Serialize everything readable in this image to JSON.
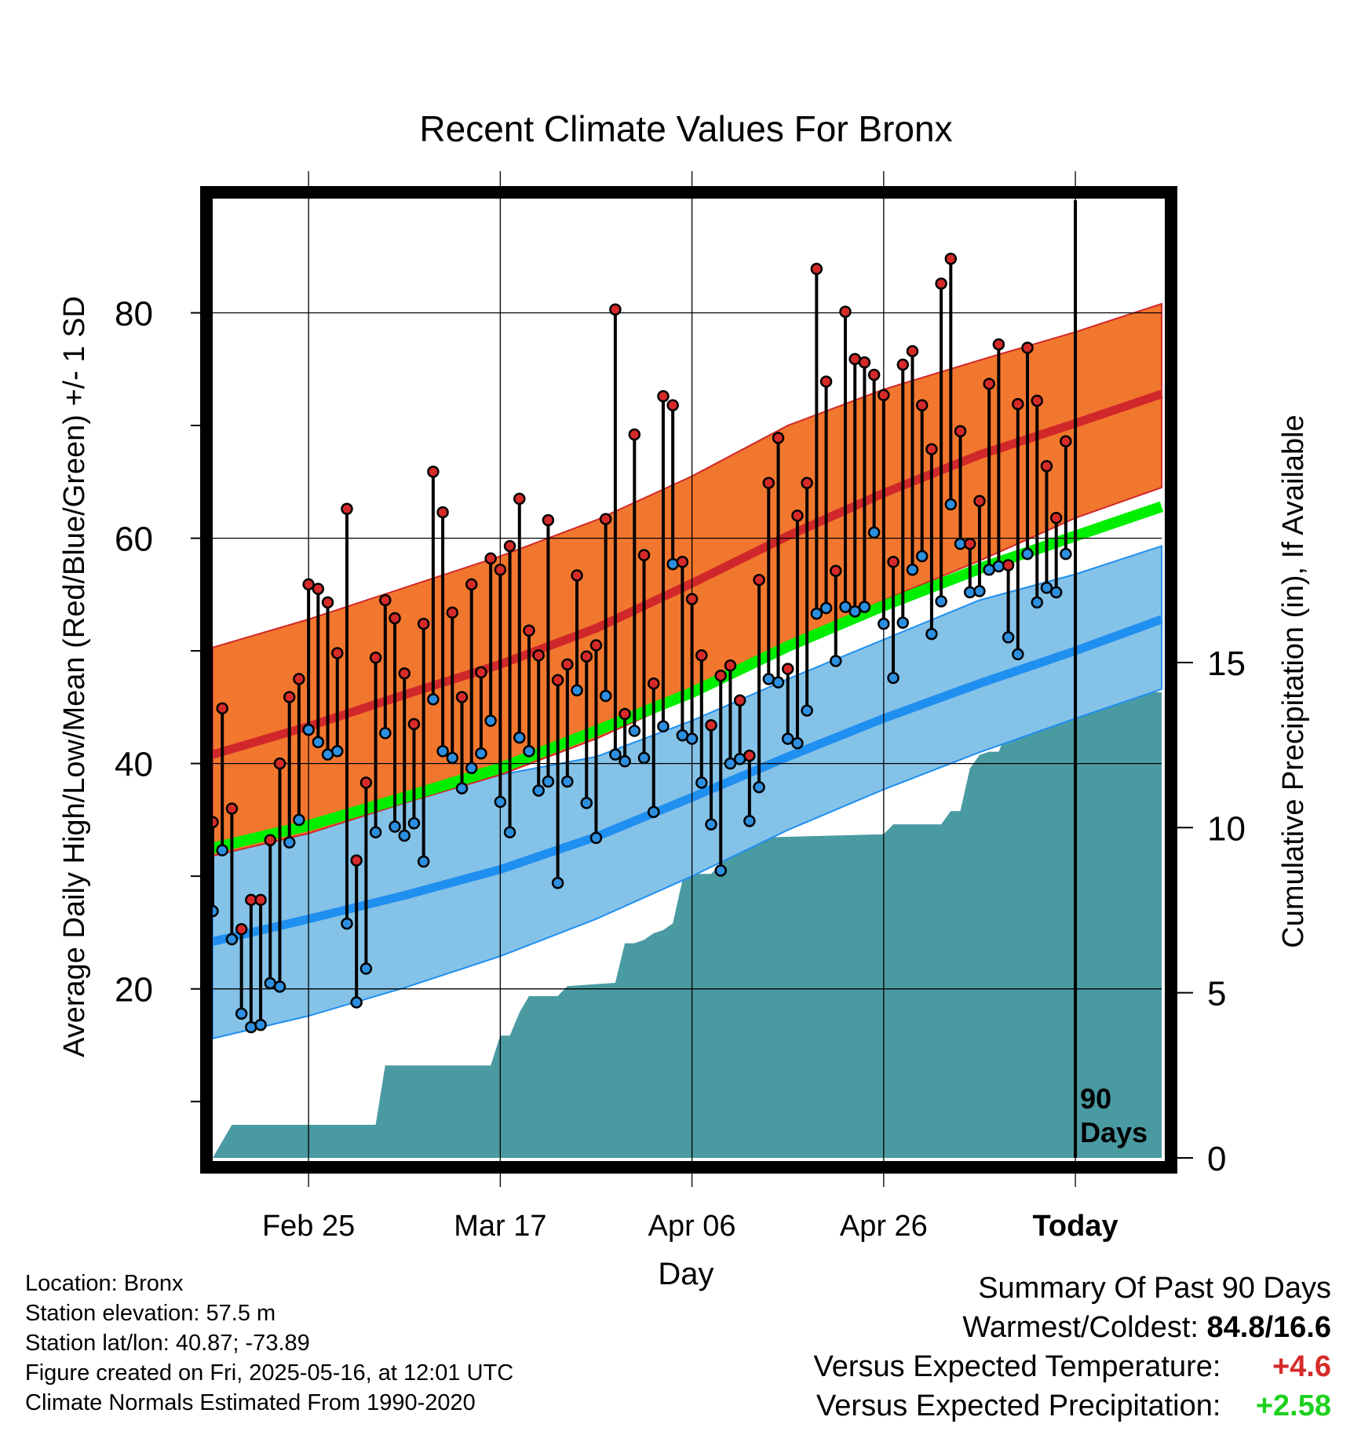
{
  "chart_data": {
    "type": "line",
    "title": "Recent Climate Values For Bronx",
    "xlabel": "Day",
    "ylabel_left": "Average Daily High/Low/Mean (Red/Blue/Green) +/- 1 SD",
    "ylabel_right": "Cumulative Precipitation (in), If Available",
    "x_start": "2025-02-15",
    "x_end": "2025-05-25",
    "today": "2025-05-16",
    "today_marker_label": [
      "90",
      "Days"
    ],
    "xticks": [
      {
        "date": "2025-02-25",
        "label": "Feb 25"
      },
      {
        "date": "2025-03-17",
        "label": "Mar 17"
      },
      {
        "date": "2025-04-06",
        "label": "Apr 06"
      },
      {
        "date": "2025-04-26",
        "label": "Apr 26"
      },
      {
        "date": "2025-05-16",
        "label": "Today"
      }
    ],
    "yleft_lim": [
      5,
      90
    ],
    "yleft_ticks": [
      20,
      40,
      60,
      80
    ],
    "yleft_minor_ticks": [
      10,
      30,
      50,
      70
    ],
    "yright_lim": [
      0,
      29
    ],
    "yright_ticks": [
      0,
      5,
      10,
      15
    ],
    "grid": true,
    "normals": {
      "dates": [
        "2025-02-15",
        "2025-02-25",
        "2025-03-07",
        "2025-03-17",
        "2025-03-27",
        "2025-04-06",
        "2025-04-16",
        "2025-04-26",
        "2025-05-06",
        "2025-05-16",
        "2025-05-25"
      ],
      "high_mean": [
        40.8,
        43.3,
        46.1,
        48.8,
        52.0,
        56.0,
        60.2,
        64.0,
        67.4,
        70.2,
        72.8
      ],
      "high_upper": [
        50.3,
        52.8,
        55.6,
        58.4,
        61.6,
        65.5,
        70.0,
        73.2,
        75.8,
        78.3,
        80.8
      ],
      "high_lower": [
        31.8,
        33.8,
        36.5,
        39.0,
        42.2,
        46.0,
        50.6,
        54.5,
        58.0,
        61.8,
        64.5
      ],
      "low_mean": [
        24.2,
        26.2,
        28.3,
        30.6,
        33.5,
        37.0,
        40.6,
        44.0,
        47.1,
        50.0,
        52.8
      ],
      "low_upper": [
        31.8,
        33.8,
        36.5,
        39.0,
        40.6,
        43.8,
        47.5,
        51.0,
        54.5,
        56.8,
        59.3
      ],
      "low_lower": [
        15.6,
        17.6,
        20.1,
        22.9,
        26.2,
        30.0,
        34.1,
        37.7,
        41.0,
        44.0,
        46.6
      ],
      "daily_mean": [
        32.5,
        34.5,
        37.0,
        39.6,
        42.9,
        46.3,
        50.4,
        54.0,
        57.3,
        60.2,
        62.8
      ]
    },
    "observed": [
      {
        "date": "2025-02-15",
        "high": 34.8,
        "low": 26.9
      },
      {
        "date": "2025-02-16",
        "high": 44.9,
        "low": 32.3
      },
      {
        "date": "2025-02-17",
        "high": 36.0,
        "low": 24.4
      },
      {
        "date": "2025-02-18",
        "high": 25.3,
        "low": 17.8
      },
      {
        "date": "2025-02-19",
        "high": 27.9,
        "low": 16.6
      },
      {
        "date": "2025-02-20",
        "high": 27.9,
        "low": 16.8
      },
      {
        "date": "2025-02-21",
        "high": 33.2,
        "low": 20.5
      },
      {
        "date": "2025-02-22",
        "high": 40.0,
        "low": 20.2
      },
      {
        "date": "2025-02-23",
        "high": 45.9,
        "low": 33.0
      },
      {
        "date": "2025-02-24",
        "high": 47.5,
        "low": 35.0
      },
      {
        "date": "2025-02-25",
        "high": 55.9,
        "low": 43.0
      },
      {
        "date": "2025-02-26",
        "high": 55.5,
        "low": 41.9
      },
      {
        "date": "2025-02-27",
        "high": 54.3,
        "low": 40.8
      },
      {
        "date": "2025-02-28",
        "high": 49.8,
        "low": 41.1
      },
      {
        "date": "2025-03-01",
        "high": 62.6,
        "low": 25.8
      },
      {
        "date": "2025-03-02",
        "high": 31.4,
        "low": 18.8
      },
      {
        "date": "2025-03-03",
        "high": 38.3,
        "low": 21.8
      },
      {
        "date": "2025-03-04",
        "high": 49.4,
        "low": 33.9
      },
      {
        "date": "2025-03-05",
        "high": 54.5,
        "low": 42.7
      },
      {
        "date": "2025-03-06",
        "high": 52.9,
        "low": 34.4
      },
      {
        "date": "2025-03-07",
        "high": 48.0,
        "low": 33.6
      },
      {
        "date": "2025-03-08",
        "high": 43.5,
        "low": 34.7
      },
      {
        "date": "2025-03-09",
        "high": 52.4,
        "low": 31.3
      },
      {
        "date": "2025-03-10",
        "high": 65.9,
        "low": 45.7
      },
      {
        "date": "2025-03-11",
        "high": 62.3,
        "low": 41.1
      },
      {
        "date": "2025-03-12",
        "high": 53.4,
        "low": 40.5
      },
      {
        "date": "2025-03-13",
        "high": 45.9,
        "low": 37.8
      },
      {
        "date": "2025-03-14",
        "high": 55.9,
        "low": 39.6
      },
      {
        "date": "2025-03-15",
        "high": 48.1,
        "low": 40.9
      },
      {
        "date": "2025-03-16",
        "high": 58.2,
        "low": 43.8
      },
      {
        "date": "2025-03-17",
        "high": 57.2,
        "low": 36.6
      },
      {
        "date": "2025-03-18",
        "high": 59.3,
        "low": 33.9
      },
      {
        "date": "2025-03-19",
        "high": 63.5,
        "low": 42.3
      },
      {
        "date": "2025-03-20",
        "high": 51.8,
        "low": 41.1
      },
      {
        "date": "2025-03-21",
        "high": 49.6,
        "low": 37.6
      },
      {
        "date": "2025-03-22",
        "high": 61.6,
        "low": 38.4
      },
      {
        "date": "2025-03-23",
        "high": 47.4,
        "low": 29.4
      },
      {
        "date": "2025-03-24",
        "high": 48.8,
        "low": 38.4
      },
      {
        "date": "2025-03-25",
        "high": 56.7,
        "low": 46.5
      },
      {
        "date": "2025-03-26",
        "high": 49.5,
        "low": 36.5
      },
      {
        "date": "2025-03-27",
        "high": 50.5,
        "low": 33.4
      },
      {
        "date": "2025-03-28",
        "high": 61.7,
        "low": 46.0
      },
      {
        "date": "2025-03-29",
        "high": 80.3,
        "low": 40.8
      },
      {
        "date": "2025-03-30",
        "high": 44.4,
        "low": 40.2
      },
      {
        "date": "2025-03-31",
        "high": 69.2,
        "low": 42.9
      },
      {
        "date": "2025-04-01",
        "high": 58.5,
        "low": 40.5
      },
      {
        "date": "2025-04-02",
        "high": 47.1,
        "low": 35.7
      },
      {
        "date": "2025-04-03",
        "high": 72.6,
        "low": 43.3
      },
      {
        "date": "2025-04-04",
        "high": 71.8,
        "low": 57.7
      },
      {
        "date": "2025-04-05",
        "high": 57.9,
        "low": 42.5
      },
      {
        "date": "2025-04-06",
        "high": 54.6,
        "low": 42.2
      },
      {
        "date": "2025-04-07",
        "high": 49.6,
        "low": 38.3
      },
      {
        "date": "2025-04-08",
        "high": 43.4,
        "low": 34.6
      },
      {
        "date": "2025-04-09",
        "high": 47.8,
        "low": 30.5
      },
      {
        "date": "2025-04-10",
        "high": 48.7,
        "low": 40.0
      },
      {
        "date": "2025-04-11",
        "high": 45.6,
        "low": 40.4
      },
      {
        "date": "2025-04-12",
        "high": 40.7,
        "low": 34.9
      },
      {
        "date": "2025-04-13",
        "high": 56.3,
        "low": 37.9
      },
      {
        "date": "2025-04-14",
        "high": 64.9,
        "low": 47.5
      },
      {
        "date": "2025-04-15",
        "high": 68.9,
        "low": 47.2
      },
      {
        "date": "2025-04-16",
        "high": 48.4,
        "low": 42.2
      },
      {
        "date": "2025-04-17",
        "high": 62.0,
        "low": 41.8
      },
      {
        "date": "2025-04-18",
        "high": 64.9,
        "low": 44.7
      },
      {
        "date": "2025-04-19",
        "high": 83.9,
        "low": 53.3
      },
      {
        "date": "2025-04-20",
        "high": 73.9,
        "low": 53.8
      },
      {
        "date": "2025-04-21",
        "high": 57.1,
        "low": 49.1
      },
      {
        "date": "2025-04-22",
        "high": 80.1,
        "low": 53.9
      },
      {
        "date": "2025-04-23",
        "high": 75.9,
        "low": 53.5
      },
      {
        "date": "2025-04-24",
        "high": 75.6,
        "low": 53.9
      },
      {
        "date": "2025-04-25",
        "high": 74.5,
        "low": 60.5
      },
      {
        "date": "2025-04-26",
        "high": 72.7,
        "low": 52.4
      },
      {
        "date": "2025-04-27",
        "high": 57.9,
        "low": 47.6
      },
      {
        "date": "2025-04-28",
        "high": 75.4,
        "low": 52.5
      },
      {
        "date": "2025-04-29",
        "high": 76.6,
        "low": 57.2
      },
      {
        "date": "2025-04-30",
        "high": 71.8,
        "low": 58.4
      },
      {
        "date": "2025-05-01",
        "high": 67.9,
        "low": 51.5
      },
      {
        "date": "2025-05-02",
        "high": 82.6,
        "low": 54.4
      },
      {
        "date": "2025-05-03",
        "high": 84.8,
        "low": 63.0
      },
      {
        "date": "2025-05-04",
        "high": 69.5,
        "low": 59.5
      },
      {
        "date": "2025-05-05",
        "high": 59.5,
        "low": 55.2
      },
      {
        "date": "2025-05-06",
        "high": 63.3,
        "low": 55.3
      },
      {
        "date": "2025-05-07",
        "high": 73.7,
        "low": 57.2
      },
      {
        "date": "2025-05-08",
        "high": 77.2,
        "low": 57.5
      },
      {
        "date": "2025-05-09",
        "high": 57.6,
        "low": 51.2
      },
      {
        "date": "2025-05-10",
        "high": 71.9,
        "low": 49.7
      },
      {
        "date": "2025-05-11",
        "high": 76.9,
        "low": 58.6
      },
      {
        "date": "2025-05-12",
        "high": 72.2,
        "low": 54.3
      },
      {
        "date": "2025-05-13",
        "high": 66.4,
        "low": 55.6
      },
      {
        "date": "2025-05-14",
        "high": 61.8,
        "low": 55.2
      },
      {
        "date": "2025-05-15",
        "high": 68.6,
        "low": 58.6
      }
    ],
    "cumulative_precip": {
      "dates": [
        "2025-02-15",
        "2025-02-16",
        "2025-02-17",
        "2025-03-04",
        "2025-03-05",
        "2025-03-16",
        "2025-03-17",
        "2025-03-18",
        "2025-03-19",
        "2025-03-20",
        "2025-03-23",
        "2025-03-24",
        "2025-03-29",
        "2025-03-30",
        "2025-03-31",
        "2025-04-01",
        "2025-04-02",
        "2025-04-03",
        "2025-04-04",
        "2025-04-05",
        "2025-04-06",
        "2025-04-07",
        "2025-04-08",
        "2025-04-09",
        "2025-04-10",
        "2025-04-11",
        "2025-04-12",
        "2025-04-13",
        "2025-04-26",
        "2025-04-27",
        "2025-05-02",
        "2025-05-03",
        "2025-05-04",
        "2025-05-05",
        "2025-05-06",
        "2025-05-07",
        "2025-05-08",
        "2025-05-09",
        "2025-05-10",
        "2025-05-11",
        "2025-05-12",
        "2025-05-13",
        "2025-05-14",
        "2025-05-15",
        "2025-05-25"
      ],
      "values": [
        0.0,
        0.5,
        1.0,
        1.0,
        2.8,
        2.8,
        3.7,
        3.7,
        4.4,
        4.9,
        4.9,
        5.2,
        5.3,
        6.5,
        6.5,
        6.6,
        6.8,
        6.9,
        7.1,
        8.4,
        8.6,
        8.6,
        8.6,
        8.9,
        9.6,
        9.6,
        9.7,
        9.7,
        9.8,
        10.1,
        10.1,
        10.5,
        10.5,
        11.8,
        12.2,
        12.3,
        12.3,
        13.0,
        13.0,
        13.0,
        13.0,
        13.2,
        13.7,
        14.1,
        14.1
      ]
    },
    "colors": {
      "high_band": "#f2772e",
      "high_line": "#d0282a",
      "low_band": "#85c2e8",
      "low_line": "#1f8ff0",
      "mean_band": "#00ee00",
      "precip": "#4a9aa2",
      "high_marker": "#d62a2a",
      "low_marker": "#2d8fe0",
      "frame": "#000000"
    }
  },
  "info": {
    "location": "Location: Bronx",
    "elevation": "Station elevation: 57.5 m",
    "latlon": "Station lat/lon: 40.87; -73.89",
    "created": "Figure created on Fri, 2025-05-16, at 12:01 UTC",
    "normals": "Climate Normals Estimated From 1990-2020"
  },
  "summary": {
    "title": "Summary Of Past 90 Days",
    "warm_cold_label": "Warmest/Coldest:",
    "warm_cold_value": "84.8/16.6",
    "temp_label": "Versus Expected Temperature:",
    "temp_value": "+4.6",
    "precip_label": "Versus Expected Precipitation:",
    "precip_value": "+2.58"
  }
}
